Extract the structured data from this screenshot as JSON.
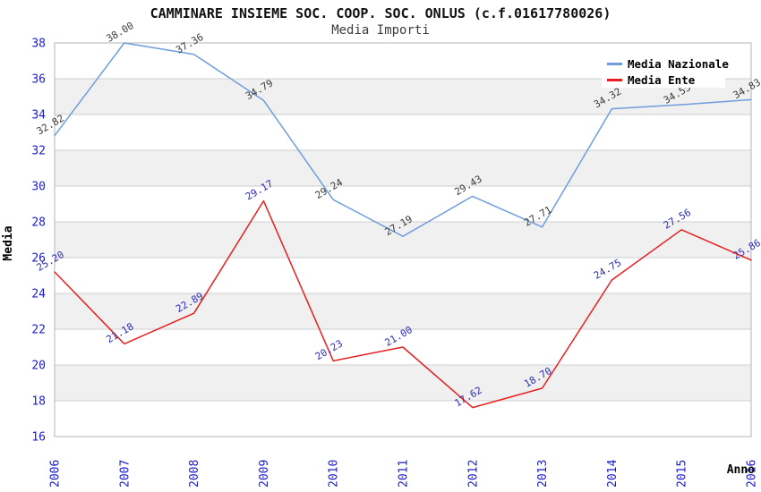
{
  "chart_data": {
    "type": "line",
    "title": "CAMMINARE INSIEME SOC. COOP. SOC. ONLUS (c.f.01617780026)",
    "subtitle": "Media Importi",
    "xlabel": "Anno",
    "ylabel": "Media",
    "x": [
      "2006",
      "2007",
      "2008",
      "2009",
      "2010",
      "2011",
      "2012",
      "2013",
      "2014",
      "2015",
      "2016"
    ],
    "series": [
      {
        "name": "Media Nazionale",
        "color": "#6f9ddd",
        "label_color": "#3b3b3b",
        "values": [
          32.82,
          38.0,
          37.36,
          34.79,
          29.24,
          27.19,
          29.43,
          27.71,
          34.32,
          34.55,
          34.83
        ],
        "labels": [
          "32.82",
          "38.00",
          "37.36",
          "34.79",
          "29.24",
          "27.19",
          "29.43",
          "27.71",
          "34.32",
          "34.55",
          "34.83"
        ]
      },
      {
        "name": "Media Ente",
        "color": "#e62020",
        "label_color": "#2d2db4",
        "values": [
          25.2,
          21.18,
          22.89,
          29.17,
          20.23,
          21.0,
          17.62,
          18.7,
          24.75,
          27.56,
          25.86
        ],
        "labels": [
          "25.20",
          "21.18",
          "22.89",
          "29.17",
          "20.23",
          "21.00",
          "17.62",
          "18.70",
          "24.75",
          "27.56",
          "25.86"
        ]
      }
    ],
    "ylim": [
      16,
      38
    ],
    "yticks": [
      16,
      18,
      20,
      22,
      24,
      26,
      28,
      30,
      32,
      34,
      36,
      38
    ],
    "grid": "horizontal-only",
    "legend_position": "top-right",
    "colors": {
      "tick_label": "#1a1acc",
      "grid_line": "#cfcfcf",
      "band_gray": "#f0f0f0",
      "band_white": "#ffffff",
      "plot_border": "#b5b5b5",
      "axis_title": "#000000",
      "legend_bg": "#ffffff",
      "legend_text": "#000000"
    }
  }
}
